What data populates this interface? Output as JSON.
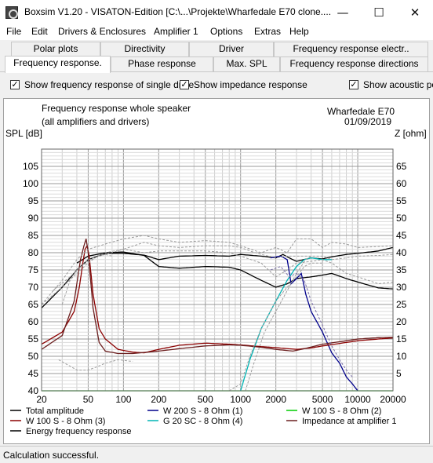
{
  "window": {
    "title": "Boxsim V1.20 - VISATON-Edition [C:\\...\\Projekte\\Wharfedale E70 clone....",
    "minimize": "—",
    "maximize": "☐",
    "close": "✕"
  },
  "menu": [
    "File",
    "Edit",
    "Drivers & Enclosures",
    "Amplifier 1",
    "Options",
    "Extras",
    "Help"
  ],
  "tabs_row1": [
    "Polar plots",
    "Directivity",
    "Driver",
    "Frequency response electr.."
  ],
  "tabs_row2": [
    "Frequency response.",
    "Phase response",
    "Max. SPL",
    "Frequency response directions"
  ],
  "active_tab": "Frequency response.",
  "options": [
    {
      "label": "Show frequency response of single drive",
      "checked": true
    },
    {
      "label": "Show impedance response",
      "checked": true
    },
    {
      "label": "Show acoustic po",
      "checked": true
    }
  ],
  "chart_header": {
    "title_line1": "Frequency response whole speaker",
    "title_line2": "(all amplifiers and drivers)",
    "project": "Wharfedale E70",
    "date": "01/09/2019",
    "y_left_label": "SPL [dB]",
    "y_right_label": "Z [ohm]"
  },
  "legend": [
    {
      "label": "Total amplitude",
      "color": "#000000"
    },
    {
      "label": "W 200 S - 8 Ohm (1)",
      "color": "#00008b"
    },
    {
      "label": "W 100 S - 8 Ohm (2)",
      "color": "#00cc00"
    },
    {
      "label": "W 100 S - 8 Ohm (3)",
      "color": "#8b0000"
    },
    {
      "label": "G 20 SC - 8 Ohm (4)",
      "color": "#00b4b4"
    },
    {
      "label": "Impedance at amplifier 1",
      "color": "#6b1f1f"
    },
    {
      "label": "Energy frequency response",
      "color": "#000000"
    }
  ],
  "status": "Calculation successful.",
  "chart_data": {
    "type": "line",
    "xscale": "log",
    "xlim": [
      20,
      20000
    ],
    "ylim": [
      40,
      110
    ],
    "y2lim": [
      0,
      70
    ],
    "x_ticks": [
      20,
      50,
      100,
      200,
      500,
      1000,
      2000,
      5000,
      10000,
      20000
    ],
    "x_tick_labels": [
      "20",
      "50",
      "100",
      "200",
      "500",
      "1000",
      "2000",
      "5000",
      "10000",
      "20000"
    ],
    "y_ticks": [
      40,
      45,
      50,
      55,
      60,
      65,
      70,
      75,
      80,
      85,
      90,
      95,
      100,
      105
    ],
    "y2_ticks": [
      5,
      10,
      15,
      20,
      25,
      30,
      35,
      40,
      45,
      50,
      55,
      60,
      65
    ],
    "grid": true,
    "series": [
      {
        "name": "Total amplitude",
        "color": "#000000",
        "axis": "left",
        "points": [
          [
            20,
            64
          ],
          [
            30,
            70
          ],
          [
            40,
            75
          ],
          [
            50,
            78
          ],
          [
            70,
            79.8
          ],
          [
            100,
            79.8
          ],
          [
            150,
            79.3
          ],
          [
            200,
            78
          ],
          [
            300,
            79
          ],
          [
            500,
            79.2
          ],
          [
            800,
            79
          ],
          [
            1000,
            79.5
          ],
          [
            1500,
            79
          ],
          [
            2000,
            78.5
          ],
          [
            2300,
            79.5
          ],
          [
            2600,
            78.5
          ],
          [
            3000,
            77.5
          ],
          [
            4000,
            78.5
          ],
          [
            5000,
            78.2
          ],
          [
            6000,
            78.8
          ],
          [
            8000,
            79.5
          ],
          [
            10000,
            79.8
          ],
          [
            15000,
            80.5
          ],
          [
            20000,
            81.5
          ]
        ]
      },
      {
        "name": "Energy frequency response",
        "color": "#000000",
        "axis": "left",
        "points": [
          [
            40,
            77
          ],
          [
            50,
            79
          ],
          [
            70,
            80
          ],
          [
            100,
            80.2
          ],
          [
            150,
            79.2
          ],
          [
            200,
            76
          ],
          [
            300,
            75.5
          ],
          [
            500,
            76
          ],
          [
            800,
            75.8
          ],
          [
            1000,
            75
          ],
          [
            1500,
            72
          ],
          [
            2000,
            70
          ],
          [
            2500,
            71
          ],
          [
            3000,
            72.5
          ],
          [
            4000,
            73
          ],
          [
            5000,
            73.5
          ],
          [
            6000,
            74
          ],
          [
            8000,
            72.5
          ],
          [
            10000,
            71.5
          ],
          [
            15000,
            69.8
          ],
          [
            20000,
            69.5
          ]
        ]
      },
      {
        "name": "W 200 S - 8 Ohm (1)",
        "color": "#00008b",
        "axis": "left",
        "points": [
          [
            1800,
            78.5
          ],
          [
            2200,
            79
          ],
          [
            2500,
            78
          ],
          [
            2700,
            71
          ],
          [
            3000,
            72.5
          ],
          [
            3300,
            74
          ],
          [
            3600,
            68
          ],
          [
            4000,
            63
          ],
          [
            5000,
            57
          ],
          [
            6000,
            51
          ],
          [
            7000,
            48
          ],
          [
            8000,
            44
          ],
          [
            9000,
            42
          ],
          [
            10000,
            40
          ]
        ]
      },
      {
        "name": "W 100 S - 8 Ohm (2)",
        "color": "#00cc00",
        "axis": "left",
        "points": [
          [
            20,
            40
          ],
          [
            20000,
            40
          ]
        ]
      },
      {
        "name": "W 100 S - 8 Ohm (3)",
        "color": "#8b0000",
        "axis": "left",
        "points": [
          [
            20,
            53.5
          ],
          [
            30,
            57
          ],
          [
            38,
            63
          ],
          [
            42,
            70
          ],
          [
            45,
            77
          ],
          [
            47,
            81
          ],
          [
            49,
            82
          ],
          [
            51,
            79
          ],
          [
            55,
            68
          ],
          [
            62,
            58
          ],
          [
            70,
            55
          ],
          [
            90,
            52
          ],
          [
            120,
            51.2
          ],
          [
            150,
            51
          ],
          [
            200,
            52
          ],
          [
            300,
            53.2
          ],
          [
            500,
            53.8
          ],
          [
            800,
            53.5
          ],
          [
            1000,
            53.3
          ],
          [
            1500,
            52.8
          ],
          [
            2000,
            52.5
          ],
          [
            3000,
            52
          ],
          [
            4000,
            52.4
          ],
          [
            5000,
            53
          ],
          [
            8000,
            54
          ],
          [
            10000,
            54.5
          ],
          [
            15000,
            55
          ],
          [
            20000,
            55.3
          ]
        ]
      },
      {
        "name": "G 20 SC - 8 Ohm (4)",
        "color": "#00b4b4",
        "axis": "left",
        "points": [
          [
            1000,
            40
          ],
          [
            1200,
            49
          ],
          [
            1500,
            58
          ],
          [
            2000,
            66
          ],
          [
            2500,
            72
          ],
          [
            3000,
            76
          ],
          [
            3500,
            78
          ],
          [
            4000,
            78.5
          ],
          [
            5000,
            78
          ],
          [
            6000,
            78
          ]
        ]
      },
      {
        "name": "Impedance at amplifier 1",
        "color": "#6b1f1f",
        "axis": "right",
        "points": [
          [
            20,
            12
          ],
          [
            30,
            16
          ],
          [
            38,
            26
          ],
          [
            43,
            38
          ],
          [
            46,
            42
          ],
          [
            48,
            44
          ],
          [
            50,
            40
          ],
          [
            55,
            24
          ],
          [
            62,
            14
          ],
          [
            70,
            11.5
          ],
          [
            90,
            10.8
          ],
          [
            120,
            10.8
          ],
          [
            200,
            11.5
          ],
          [
            300,
            12.2
          ],
          [
            500,
            13
          ],
          [
            800,
            13.3
          ],
          [
            1000,
            13.2
          ],
          [
            1500,
            12.6
          ],
          [
            2000,
            12
          ],
          [
            2800,
            11.5
          ],
          [
            3500,
            12.2
          ],
          [
            5000,
            13.5
          ],
          [
            8000,
            14.5
          ],
          [
            10000,
            15
          ],
          [
            15000,
            15.4
          ],
          [
            20000,
            15.5
          ]
        ]
      },
      {
        "name": "",
        "color": "#999999",
        "axis": "left",
        "dashed": true,
        "points": [
          [
            20,
            65
          ],
          [
            30,
            72
          ],
          [
            40,
            78
          ],
          [
            50,
            81
          ],
          [
            70,
            82.5
          ],
          [
            100,
            84
          ],
          [
            150,
            85
          ],
          [
            200,
            84
          ],
          [
            300,
            83
          ],
          [
            500,
            83.5
          ],
          [
            800,
            83
          ],
          [
            1000,
            82
          ],
          [
            1500,
            80
          ],
          [
            2000,
            81.5
          ],
          [
            2500,
            80
          ],
          [
            3000,
            84
          ],
          [
            4000,
            84
          ],
          [
            5000,
            81.5
          ],
          [
            6000,
            83
          ],
          [
            8000,
            82.5
          ],
          [
            10000,
            81.5
          ],
          [
            15000,
            81.8
          ],
          [
            20000,
            82
          ]
        ]
      },
      {
        "name": "",
        "color": "#999999",
        "axis": "left",
        "dashed": true,
        "points": [
          [
            25,
            69
          ],
          [
            35,
            73
          ],
          [
            50,
            78
          ],
          [
            70,
            79.5
          ],
          [
            100,
            81
          ],
          [
            150,
            80
          ],
          [
            200,
            80.5
          ],
          [
            300,
            80.5
          ],
          [
            500,
            80.5
          ],
          [
            800,
            80
          ],
          [
            1000,
            79
          ],
          [
            1500,
            77
          ],
          [
            2000,
            73
          ],
          [
            2500,
            75
          ],
          [
            3000,
            77
          ],
          [
            4000,
            77.5
          ],
          [
            5000,
            78
          ],
          [
            6000,
            77
          ],
          [
            8000,
            74
          ],
          [
            10000,
            73
          ],
          [
            15000,
            71
          ],
          [
            20000,
            71.5
          ]
        ]
      },
      {
        "name": "",
        "color": "#9e9e9e",
        "axis": "left",
        "dashed": true,
        "points": [
          [
            30,
            65
          ],
          [
            35,
            72
          ],
          [
            40,
            75
          ],
          [
            50,
            77.5
          ],
          [
            70,
            80
          ],
          [
            100,
            81
          ],
          [
            150,
            83
          ],
          [
            200,
            82
          ],
          [
            300,
            81.5
          ],
          [
            500,
            82
          ],
          [
            800,
            82
          ],
          [
            1000,
            81.5
          ],
          [
            1200,
            80.5
          ],
          [
            1500,
            79.5
          ],
          [
            2000,
            78.5
          ],
          [
            2500,
            79
          ],
          [
            3000,
            79
          ],
          [
            4000,
            79
          ],
          [
            5000,
            79
          ],
          [
            6000,
            78
          ],
          [
            8000,
            78.5
          ],
          [
            10000,
            79
          ],
          [
            15000,
            79.2
          ],
          [
            20000,
            79.5
          ]
        ]
      },
      {
        "name": "",
        "color": "#9e9e9e",
        "axis": "left",
        "dashed": true,
        "points": [
          [
            20,
            65
          ],
          [
            30,
            70
          ],
          [
            40,
            74
          ],
          [
            50,
            77
          ],
          [
            60,
            79
          ],
          [
            70,
            79.5
          ],
          [
            80,
            79
          ]
        ]
      },
      {
        "name": "",
        "color": "#9e9e9e",
        "axis": "left",
        "dashed": true,
        "points": [
          [
            28,
            49
          ],
          [
            40,
            46
          ],
          [
            50,
            46
          ],
          [
            60,
            47
          ],
          [
            70,
            48
          ],
          [
            90,
            49
          ],
          [
            120,
            48.5
          ]
        ]
      },
      {
        "name": "",
        "color": "#9e9e9e",
        "axis": "left",
        "dashed": true,
        "points": [
          [
            800,
            40
          ],
          [
            1000,
            42
          ],
          [
            1200,
            50
          ],
          [
            1500,
            58
          ],
          [
            2000,
            66
          ],
          [
            2500,
            70
          ],
          [
            3000,
            73
          ],
          [
            3500,
            76
          ],
          [
            4000,
            77
          ],
          [
            5000,
            77
          ]
        ]
      },
      {
        "name": "",
        "color": "#9e9e9e",
        "axis": "left",
        "dashed": true,
        "points": [
          [
            1100,
            40
          ],
          [
            1300,
            48
          ],
          [
            1600,
            57
          ],
          [
            2000,
            63
          ],
          [
            2500,
            69
          ],
          [
            3000,
            74
          ],
          [
            3600,
            78
          ],
          [
            4000,
            79
          ]
        ]
      },
      {
        "name": "",
        "color": "#7a6fa8",
        "axis": "left",
        "dashed": true,
        "points": [
          [
            1800,
            75
          ],
          [
            2200,
            76
          ],
          [
            2600,
            73
          ],
          [
            3000,
            74
          ],
          [
            3500,
            72
          ],
          [
            4000,
            66
          ],
          [
            5000,
            59
          ],
          [
            6000,
            53
          ],
          [
            7000,
            49
          ],
          [
            8000,
            46
          ],
          [
            9000,
            44
          ]
        ]
      }
    ]
  }
}
